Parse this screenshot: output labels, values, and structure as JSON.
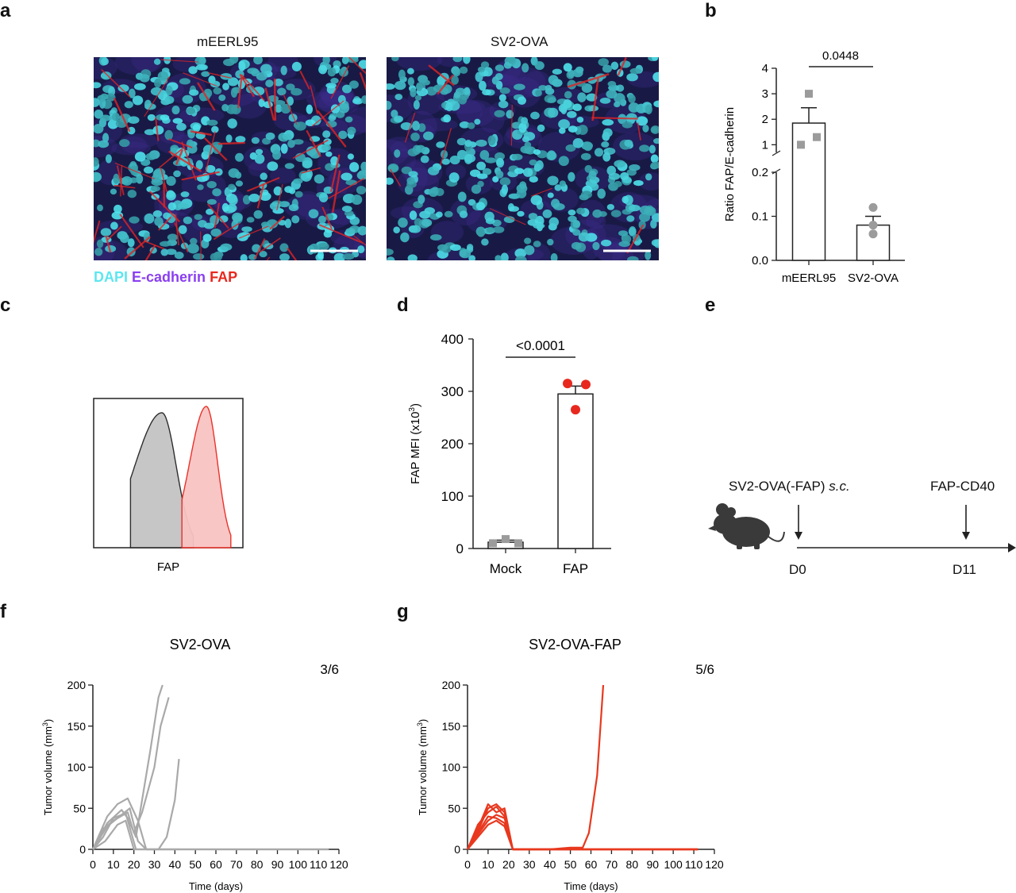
{
  "panels": {
    "a": "a",
    "b": "b",
    "c": "c",
    "d": "d",
    "e": "e",
    "f": "f",
    "g": "g"
  },
  "panel_a": {
    "image_titles": [
      "mEERL95",
      "SV2-OVA"
    ],
    "legend": [
      {
        "label": "DAPI",
        "color": "#5ee6f0"
      },
      {
        "label": "E-cadherin",
        "color": "#8a3ff0"
      },
      {
        "label": "FAP",
        "color": "#e8281e"
      }
    ]
  },
  "chart_data": [
    {
      "id": "b",
      "type": "bar",
      "categories": [
        "mEERL95",
        "SV2-OVA"
      ],
      "values": [
        1.85,
        0.08
      ],
      "errors": [
        0.6,
        0.02
      ],
      "points": [
        [
          3.0,
          1.0,
          1.3
        ],
        [
          0.12,
          0.08,
          0.06
        ]
      ],
      "ylabel": "Ratio FAP/E-cadherin",
      "y_ticks_lower": [
        "0.0",
        "0.1",
        "0.2"
      ],
      "y_ticks_upper": [
        "1",
        "2",
        "3",
        "4"
      ],
      "ylim_lower": [
        0,
        0.2
      ],
      "ylim_upper": [
        0.7,
        4
      ],
      "broken_axis": true,
      "significance": "0.0448",
      "marker_colors": [
        "#9b9b9b",
        "#9b9b9b"
      ]
    },
    {
      "id": "c",
      "type": "area",
      "xlabel": "FAP",
      "series": [
        {
          "color": "#222222",
          "fill": "#c4c4c4"
        },
        {
          "color": "#e8281e",
          "fill": "#f9c3c3"
        }
      ]
    },
    {
      "id": "d",
      "type": "bar",
      "categories": [
        "Mock",
        "FAP"
      ],
      "values": [
        12,
        295
      ],
      "errors": [
        4,
        15
      ],
      "points": [
        [
          10,
          18,
          10
        ],
        [
          315,
          313,
          265
        ]
      ],
      "ylabel": "FAP MFI (x10",
      "ylabel_sup": "3",
      "ylabel_end": ")",
      "ylim": [
        0,
        400
      ],
      "y_ticks": [
        "0",
        "100",
        "200",
        "300",
        "400"
      ],
      "significance": "<0.0001",
      "marker_colors": [
        "#9b9b9b",
        "#e8281e"
      ]
    },
    {
      "id": "f",
      "type": "line",
      "title": "SV2-OVA",
      "annotation": "3/6",
      "xlabel": "Time (days)",
      "ylabel": "Tumor volume (mm",
      "ylabel_sup": "3",
      "ylabel_end": ")",
      "xlim": [
        0,
        120
      ],
      "ylim": [
        0,
        200
      ],
      "x_ticks": [
        "0",
        "10",
        "20",
        "30",
        "40",
        "50",
        "60",
        "70",
        "80",
        "90",
        "100",
        "110",
        "120"
      ],
      "y_ticks": [
        "0",
        "50",
        "100",
        "150",
        "200"
      ],
      "color": "#a9a9a9",
      "series": [
        {
          "x": [
            0,
            7,
            14,
            17,
            21,
            24,
            28,
            32,
            34
          ],
          "y": [
            0,
            32,
            48,
            38,
            15,
            60,
            120,
            185,
            200
          ]
        },
        {
          "x": [
            0,
            5,
            10,
            17,
            20,
            24,
            30,
            33,
            37
          ],
          "y": [
            0,
            25,
            35,
            45,
            20,
            45,
            100,
            150,
            185
          ]
        },
        {
          "x": [
            0,
            7,
            12,
            17,
            22,
            26,
            31,
            35,
            42
          ],
          "y": [
            0,
            40,
            55,
            62,
            35,
            0,
            0,
            0,
            0
          ]
        },
        {
          "x": [
            0,
            7,
            14,
            18,
            22,
            26,
            32,
            36,
            40,
            42
          ],
          "y": [
            0,
            28,
            42,
            50,
            10,
            0,
            0,
            15,
            60,
            110
          ]
        },
        {
          "x": [
            0,
            5,
            10,
            16,
            21,
            30,
            60,
            80,
            100,
            115
          ],
          "y": [
            0,
            15,
            38,
            44,
            0,
            0,
            0,
            0,
            0,
            0
          ]
        },
        {
          "x": [
            0,
            6,
            12,
            16,
            20,
            30,
            60,
            80,
            100,
            115
          ],
          "y": [
            0,
            10,
            30,
            35,
            0,
            0,
            0,
            0,
            0,
            0
          ]
        }
      ]
    },
    {
      "id": "g",
      "type": "line",
      "title": "SV2-OVA-FAP",
      "annotation": "5/6",
      "xlabel": "Time (days)",
      "ylabel": "Tumor volume (mm",
      "ylabel_sup": "3",
      "ylabel_end": ")",
      "xlim": [
        0,
        120
      ],
      "ylim": [
        0,
        200
      ],
      "x_ticks": [
        "0",
        "10",
        "20",
        "30",
        "40",
        "50",
        "60",
        "70",
        "80",
        "90",
        "100",
        "110",
        "120"
      ],
      "y_ticks": [
        "0",
        "50",
        "100",
        "150",
        "200"
      ],
      "color": "#e8381e",
      "series": [
        {
          "x": [
            0,
            5,
            10,
            14,
            18,
            22,
            40,
            50,
            56,
            59,
            63,
            66
          ],
          "y": [
            0,
            25,
            55,
            45,
            50,
            0,
            0,
            2,
            2,
            20,
            90,
            200
          ]
        },
        {
          "x": [
            0,
            5,
            10,
            14,
            18,
            22,
            40,
            60,
            80,
            100,
            112
          ],
          "y": [
            0,
            30,
            45,
            52,
            40,
            0,
            0,
            0,
            0,
            0,
            0
          ]
        },
        {
          "x": [
            0,
            5,
            10,
            14,
            18,
            22,
            40,
            60,
            80,
            100,
            112
          ],
          "y": [
            0,
            20,
            40,
            38,
            32,
            0,
            0,
            0,
            0,
            0,
            0
          ]
        },
        {
          "x": [
            0,
            5,
            10,
            14,
            18,
            22,
            40,
            60,
            80,
            100,
            112
          ],
          "y": [
            0,
            15,
            30,
            35,
            28,
            0,
            0,
            0,
            0,
            0,
            0
          ]
        },
        {
          "x": [
            0,
            5,
            10,
            14,
            18,
            22,
            40,
            60,
            80,
            100,
            112
          ],
          "y": [
            0,
            22,
            50,
            55,
            45,
            0,
            0,
            0,
            0,
            0,
            0
          ]
        },
        {
          "x": [
            0,
            5,
            10,
            14,
            18,
            22,
            40,
            60,
            80,
            100,
            112
          ],
          "y": [
            0,
            18,
            35,
            42,
            38,
            0,
            0,
            0,
            0,
            0,
            0
          ]
        }
      ]
    }
  ],
  "panel_e": {
    "label_sc_prefix": "SV2-OVA(-FAP) ",
    "label_sc_italic": "s.c.",
    "label_treatment": "FAP-CD40",
    "day_start": "D0",
    "day_treat": "D11",
    "icon": "mouse-icon"
  }
}
